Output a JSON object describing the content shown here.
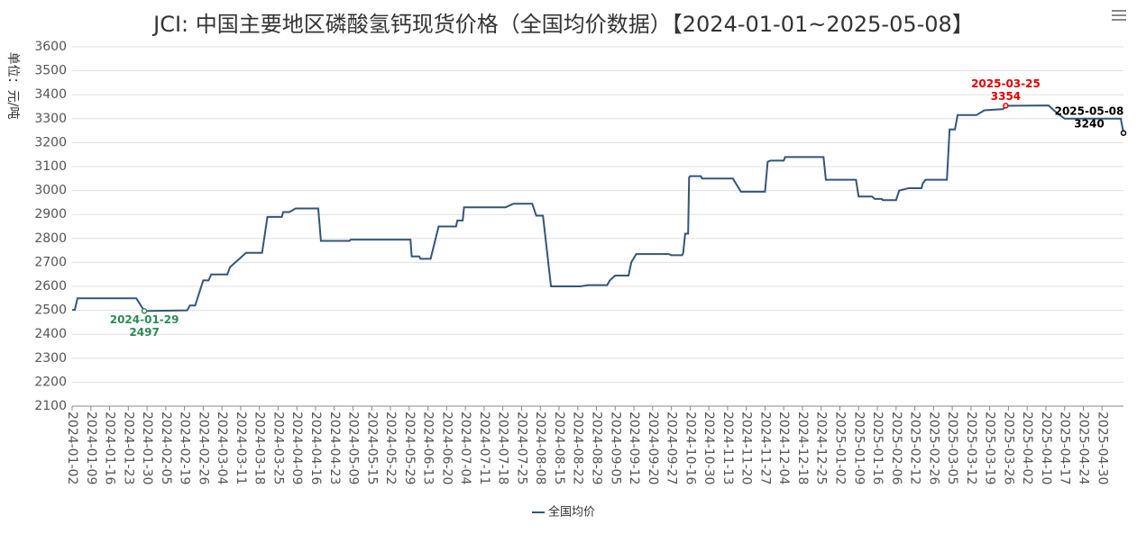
{
  "chart_data": {
    "type": "line",
    "title": "JCI: 中国主要地区磷酸氢钙现货价格（全国均价数据）【2024-01-01~2025-05-08】",
    "y_label": "单位：元/吨",
    "x": [
      "2024-01-02",
      "2024-01-03",
      "2024-01-04",
      "2024-01-26",
      "2024-01-29",
      "2024-02-20",
      "2024-02-21",
      "2024-02-23",
      "2024-02-26",
      "2024-02-28",
      "2024-02-29",
      "2024-03-06",
      "2024-03-07",
      "2024-03-11",
      "2024-03-13",
      "2024-03-19",
      "2024-03-21",
      "2024-03-28",
      "2024-03-29",
      "2024-04-03",
      "2024-04-08",
      "2024-04-17",
      "2024-04-18",
      "2024-05-06",
      "2024-05-07",
      "2024-05-30",
      "2024-05-31",
      "2024-06-06",
      "2024-06-07",
      "2024-06-14",
      "2024-06-17",
      "2024-06-27",
      "2024-06-28",
      "2024-07-02",
      "2024-07-03",
      "2024-07-19",
      "2024-07-22",
      "2024-08-02",
      "2024-08-05",
      "2024-08-09",
      "2024-08-12",
      "2024-08-23",
      "2024-08-26",
      "2024-09-02",
      "2024-09-03",
      "2024-09-05",
      "2024-09-10",
      "2024-09-11",
      "2024-09-13",
      "2024-09-26",
      "2024-09-27",
      "2024-10-08",
      "2024-10-09",
      "2024-10-11",
      "2024-10-14",
      "2024-10-15",
      "2024-10-16",
      "2024-10-24",
      "2024-10-25",
      "2024-11-15",
      "2024-11-18",
      "2024-11-27",
      "2024-11-28",
      "2024-11-29",
      "2024-12-04",
      "2024-12-05",
      "2024-12-26",
      "2024-12-27",
      "2025-01-08",
      "2025-01-09",
      "2025-01-14",
      "2025-01-15",
      "2025-01-21",
      "2025-01-22",
      "2025-02-06",
      "2025-02-07",
      "2025-02-10",
      "2025-02-17",
      "2025-02-18",
      "2025-02-20",
      "2025-03-03",
      "2025-03-04",
      "2025-03-06",
      "2025-03-07",
      "2025-03-14",
      "2025-03-17",
      "2025-03-24",
      "2025-03-25",
      "2025-04-11",
      "2025-04-14",
      "2025-04-17",
      "2025-05-07",
      "2025-05-08"
    ],
    "series": [
      {
        "name": "全国均价",
        "color": "#34557a",
        "values": [
          2502,
          2502,
          2550,
          2550,
          2497,
          2500,
          2520,
          2520,
          2625,
          2625,
          2650,
          2650,
          2680,
          2720,
          2740,
          2740,
          2890,
          2890,
          2910,
          2910,
          2925,
          2925,
          2790,
          2790,
          2795,
          2795,
          2725,
          2725,
          2715,
          2715,
          2850,
          2850,
          2875,
          2875,
          2930,
          2930,
          2945,
          2945,
          2895,
          2895,
          2600,
          2600,
          2605,
          2605,
          2625,
          2645,
          2645,
          2700,
          2735,
          2735,
          2730,
          2730,
          2740,
          2820,
          2820,
          3055,
          3060,
          3060,
          3050,
          3050,
          2995,
          2995,
          3120,
          3125,
          3125,
          3140,
          3140,
          3045,
          3045,
          2975,
          2975,
          2965,
          2965,
          2960,
          2960,
          3000,
          3010,
          3010,
          3030,
          3045,
          3045,
          3255,
          3255,
          3315,
          3315,
          3335,
          3340,
          3354,
          3355,
          3325,
          3300,
          3300,
          3240
        ]
      }
    ],
    "xlim": [
      "2024-01-02",
      "2025-05-08"
    ],
    "xticks": [
      "2024-01-02",
      "2024-01-09",
      "2024-01-16",
      "2024-01-23",
      "2024-01-30",
      "2024-02-05",
      "2024-02-19",
      "2024-02-26",
      "2024-03-04",
      "2024-03-11",
      "2024-03-18",
      "2024-03-25",
      "2024-04-09",
      "2024-04-16",
      "2024-04-23",
      "2024-05-09",
      "2024-05-15",
      "2024-05-22",
      "2024-05-29",
      "2024-06-13",
      "2024-06-20",
      "2024-07-04",
      "2024-07-11",
      "2024-07-18",
      "2024-07-25",
      "2024-08-08",
      "2024-08-15",
      "2024-08-22",
      "2024-08-29",
      "2024-09-05",
      "2024-09-12",
      "2024-09-20",
      "2024-09-27",
      "2024-10-16",
      "2024-10-30",
      "2024-11-13",
      "2024-11-20",
      "2024-11-27",
      "2024-12-04",
      "2024-12-18",
      "2024-12-25",
      "2025-01-02",
      "2025-01-09",
      "2025-01-16",
      "2025-02-06",
      "2025-02-12",
      "2025-02-26",
      "2025-03-05",
      "2025-03-12",
      "2025-03-19",
      "2025-03-26",
      "2025-04-02",
      "2025-04-10",
      "2025-04-17",
      "2025-04-24",
      "2025-04-30"
    ],
    "ylim": [
      2100,
      3600
    ],
    "yticks": [
      2100,
      2200,
      2300,
      2400,
      2500,
      2600,
      2700,
      2800,
      2900,
      3000,
      3100,
      3200,
      3300,
      3400,
      3500,
      3600
    ],
    "grid": true,
    "annotations": [
      {
        "label": "2024-01-29",
        "value": 2497,
        "color": "#2e8b57",
        "position": "below"
      },
      {
        "label": "2025-03-25",
        "value": 3354,
        "color": "#e00000",
        "position": "above"
      },
      {
        "label": "2025-05-08",
        "value": 3240,
        "color": "#000000",
        "position": "above"
      }
    ]
  }
}
